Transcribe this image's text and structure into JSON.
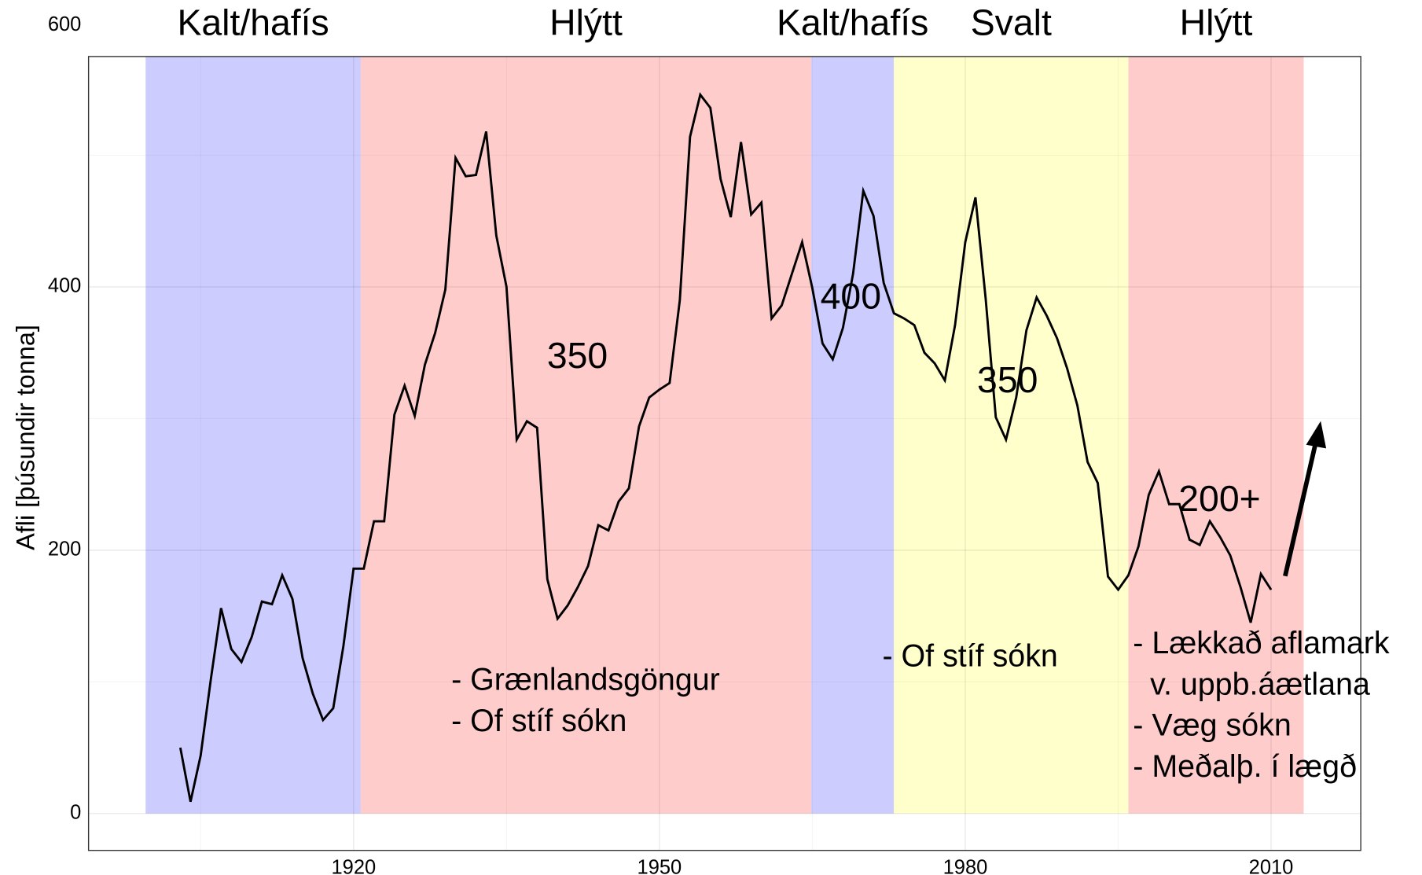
{
  "chart_data": {
    "type": "line",
    "ylabel": "Afli [þúsundir tonna]",
    "x": [
      1903,
      1904,
      1905,
      1906,
      1907,
      1908,
      1909,
      1910,
      1911,
      1912,
      1913,
      1914,
      1915,
      1916,
      1917,
      1918,
      1919,
      1920,
      1921,
      1922,
      1923,
      1924,
      1925,
      1926,
      1927,
      1928,
      1929,
      1930,
      1931,
      1932,
      1933,
      1934,
      1935,
      1936,
      1937,
      1938,
      1939,
      1940,
      1941,
      1942,
      1943,
      1944,
      1945,
      1946,
      1947,
      1948,
      1949,
      1950,
      1951,
      1952,
      1953,
      1954,
      1955,
      1956,
      1957,
      1958,
      1959,
      1960,
      1961,
      1962,
      1963,
      1964,
      1965,
      1966,
      1967,
      1968,
      1969,
      1970,
      1971,
      1972,
      1973,
      1974,
      1975,
      1976,
      1977,
      1978,
      1979,
      1980,
      1981,
      1982,
      1983,
      1984,
      1985,
      1986,
      1987,
      1988,
      1989,
      1990,
      1991,
      1992,
      1993,
      1994,
      1995,
      1996,
      1997,
      1998,
      1999,
      2000,
      2001,
      2002,
      2003,
      2004,
      2005,
      2006,
      2007,
      2008,
      2009,
      2010
    ],
    "series": [
      {
        "color": "#000000",
        "values": [
          50,
          9,
          44,
          102,
          156,
          125,
          115,
          134,
          161,
          159,
          181,
          163,
          118,
          91,
          71,
          80,
          127,
          186,
          186,
          222,
          222,
          303,
          325,
          302,
          341,
          365,
          398,
          498,
          484,
          485,
          518,
          439,
          400,
          284,
          298,
          293,
          178,
          148,
          158,
          172,
          188,
          219,
          215,
          237,
          247,
          294,
          316,
          322,
          327,
          390,
          514,
          546,
          536,
          482,
          453,
          510,
          455,
          464,
          376,
          386,
          410,
          434,
          399,
          357,
          345,
          369,
          410,
          473,
          454,
          403,
          380,
          376,
          371,
          350,
          342,
          329,
          371,
          434,
          468,
          391,
          301,
          284,
          316,
          367,
          392,
          378,
          361,
          338,
          310,
          267,
          251,
          180,
          170,
          181,
          203,
          242,
          260,
          235,
          235,
          208,
          204,
          222,
          210,
          196,
          172,
          145,
          182,
          170
        ]
      }
    ],
    "periods": [
      {
        "label": "Kalt/hafís",
        "start": 1899.6,
        "end": 1920.7,
        "color": "#ccccff",
        "label_color": "#9999ff"
      },
      {
        "label": "Hlýtt",
        "start": 1920.7,
        "end": 1964.9,
        "color": "#ffcccc",
        "label_color": "#ff9999"
      },
      {
        "label": "Kalt/hafís",
        "start": 1964.9,
        "end": 1973,
        "color": "#ccccff",
        "label_color": "#9999ff"
      },
      {
        "label": "Svalt",
        "start": 1973,
        "end": 1996,
        "color": "#ffffcc",
        "label_color": "#ffff33"
      },
      {
        "label": "Hlýtt",
        "start": 1996,
        "end": 2013.2,
        "color": "#ffcccc",
        "label_color": "#ff9999"
      }
    ],
    "annotations": [
      {
        "lines": [
          "350"
        ]
      },
      {
        "lines": [
          "400"
        ]
      },
      {
        "lines": [
          "350"
        ]
      },
      {
        "lines": [
          "200+"
        ]
      },
      {
        "lines": [
          "- Grænlandsgöngur",
          "- Of stíf sókn"
        ]
      },
      {
        "lines": [
          "- Of stíf sókn"
        ]
      },
      {
        "lines": [
          "- Lækkað aflamark",
          "  v. uppb.áætlana",
          "- Væg sókn",
          "- Meðalþ. í lægð"
        ]
      }
    ],
    "xlim": [
      1894,
      2018.8
    ],
    "ylim": [
      -28,
      575
    ],
    "xticks": [
      1920,
      1950,
      1980,
      2010
    ],
    "yticks": [
      0,
      200,
      400,
      600
    ],
    "grid": true
  }
}
